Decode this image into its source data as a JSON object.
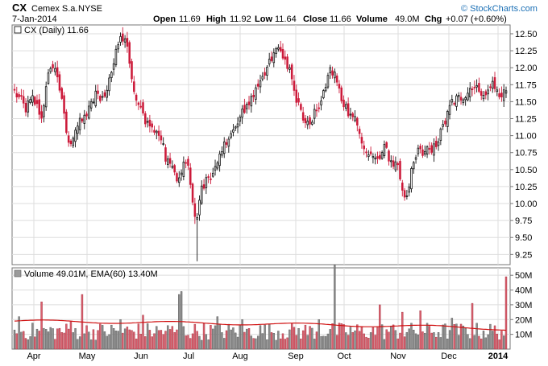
{
  "header": {
    "symbol": "CX",
    "company": "Cemex S.a.",
    "exchange": "NYSE",
    "date": "7-Jan-2014",
    "open_label": "Open",
    "open": "11.69",
    "high_label": "High",
    "high": "11.92",
    "low_label": "Low",
    "low": "11.64",
    "close_label": "Close",
    "close": "11.66",
    "volume_label": "Volume",
    "volume": "49.0M",
    "chg_label": "Chg",
    "chg": "+0.07 (+0.60%)",
    "brand": "© StockCharts.com"
  },
  "colors": {
    "up": "#111111",
    "down": "#cc1a3a",
    "vol_up": "#8c8c8c",
    "vol_down": "#d9606e",
    "ema": "#d01010",
    "grid": "#dddddd",
    "brand": "#1a6fb5"
  },
  "chart_data": [
    {
      "type": "candlestick",
      "title": "CX (Daily) 11.66",
      "x_labels": [
        "Apr",
        "May",
        "Jun",
        "Jul",
        "Aug",
        "Sep",
        "Oct",
        "Nov",
        "Dec",
        "2014"
      ],
      "ylim": [
        9.1,
        12.63
      ],
      "yticks": [
        9.25,
        9.5,
        9.75,
        10.0,
        10.25,
        10.5,
        10.75,
        11.0,
        11.25,
        11.5,
        11.75,
        12.0,
        12.25,
        12.5
      ],
      "grid": true,
      "close_anchors": [
        [
          0,
          11.65
        ],
        [
          5,
          11.4
        ],
        [
          8,
          11.55
        ],
        [
          12,
          11.3
        ],
        [
          16,
          12.05
        ],
        [
          19,
          11.9
        ],
        [
          24,
          10.85
        ],
        [
          27,
          11.1
        ],
        [
          32,
          11.3
        ],
        [
          36,
          11.6
        ],
        [
          40,
          11.55
        ],
        [
          43,
          11.95
        ],
        [
          45,
          12.2
        ],
        [
          47,
          12.5
        ],
        [
          50,
          12.35
        ],
        [
          53,
          11.6
        ],
        [
          57,
          11.3
        ],
        [
          61,
          11.1
        ],
        [
          64,
          11.05
        ],
        [
          67,
          10.7
        ],
        [
          70,
          10.5
        ],
        [
          73,
          10.3
        ],
        [
          75,
          10.6
        ],
        [
          77,
          10.55
        ],
        [
          79,
          9.95
        ],
        [
          81,
          9.8
        ],
        [
          83,
          10.2
        ],
        [
          86,
          10.4
        ],
        [
          90,
          10.55
        ],
        [
          94,
          10.95
        ],
        [
          98,
          11.1
        ],
        [
          102,
          11.4
        ],
        [
          106,
          11.6
        ],
        [
          110,
          11.9
        ],
        [
          114,
          12.1
        ],
        [
          117,
          12.3
        ],
        [
          120,
          12.15
        ],
        [
          123,
          11.9
        ],
        [
          125,
          11.55
        ],
        [
          128,
          11.25
        ],
        [
          131,
          11.2
        ],
        [
          135,
          11.45
        ],
        [
          138,
          11.75
        ],
        [
          140,
          11.95
        ],
        [
          142,
          11.9
        ],
        [
          145,
          11.55
        ],
        [
          148,
          11.35
        ],
        [
          151,
          11.25
        ],
        [
          154,
          10.9
        ],
        [
          157,
          10.65
        ],
        [
          161,
          10.7
        ],
        [
          164,
          10.8
        ],
        [
          167,
          10.65
        ],
        [
          170,
          10.5
        ],
        [
          172,
          10.15
        ],
        [
          174,
          10.05
        ],
        [
          176,
          10.5
        ],
        [
          179,
          10.75
        ],
        [
          182,
          10.8
        ],
        [
          185,
          10.75
        ],
        [
          188,
          10.95
        ],
        [
          191,
          11.2
        ],
        [
          194,
          11.5
        ],
        [
          197,
          11.55
        ],
        [
          200,
          11.6
        ],
        [
          203,
          11.75
        ],
        [
          206,
          11.7
        ],
        [
          209,
          11.6
        ],
        [
          212,
          11.75
        ],
        [
          215,
          11.6
        ],
        [
          217,
          11.66
        ]
      ],
      "last_close": 11.66
    },
    {
      "type": "bar",
      "title": "Volume 49.01M, EMA(60) 13.40M",
      "x_labels": [
        "Apr",
        "May",
        "Jun",
        "Jul",
        "Aug",
        "Sep",
        "Oct",
        "Nov",
        "Dec",
        "2014"
      ],
      "ylim": [
        0,
        55
      ],
      "yticks": [
        10,
        20,
        30,
        40,
        50
      ],
      "ytick_suffix": "M",
      "ema_start": 19,
      "ema_end": 13.4,
      "spikes": [
        [
          2,
          22
        ],
        [
          12,
          32
        ],
        [
          25,
          19
        ],
        [
          30,
          37
        ],
        [
          47,
          20
        ],
        [
          57,
          23
        ],
        [
          73,
          37
        ],
        [
          74,
          39
        ],
        [
          90,
          22
        ],
        [
          101,
          20
        ],
        [
          135,
          20
        ],
        [
          142,
          57
        ],
        [
          162,
          30
        ],
        [
          172,
          25
        ],
        [
          180,
          26
        ],
        [
          194,
          21
        ],
        [
          203,
          31
        ],
        [
          218,
          49
        ]
      ]
    }
  ]
}
